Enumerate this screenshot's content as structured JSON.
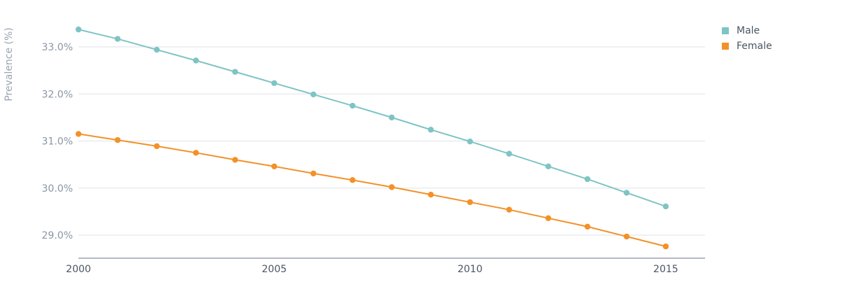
{
  "chart_data": {
    "type": "line",
    "title": "",
    "xlabel": "",
    "ylabel": "Prevalence (%)",
    "x": [
      2000,
      2001,
      2002,
      2003,
      2004,
      2005,
      2006,
      2007,
      2008,
      2009,
      2010,
      2011,
      2012,
      2013,
      2014,
      2015
    ],
    "x_ticks": [
      "2000",
      "2005",
      "2010",
      "2015"
    ],
    "y_ticks": [
      "29.0%",
      "30.0%",
      "31.0%",
      "32.0%",
      "33.0%"
    ],
    "ylim": [
      28.5,
      33.5
    ],
    "grid": "horizontal",
    "legend_position": "top-right",
    "series": [
      {
        "name": "Male",
        "color": "#7fc4c4",
        "values": [
          33.37,
          33.17,
          32.94,
          32.71,
          32.47,
          32.23,
          31.99,
          31.75,
          31.5,
          31.24,
          30.99,
          30.73,
          30.46,
          30.19,
          29.9,
          29.61
        ]
      },
      {
        "name": "Female",
        "color": "#f39128",
        "values": [
          31.15,
          31.02,
          30.89,
          30.75,
          30.6,
          30.46,
          30.31,
          30.17,
          30.02,
          29.86,
          29.7,
          29.54,
          29.36,
          29.18,
          28.97,
          28.76
        ]
      }
    ]
  }
}
